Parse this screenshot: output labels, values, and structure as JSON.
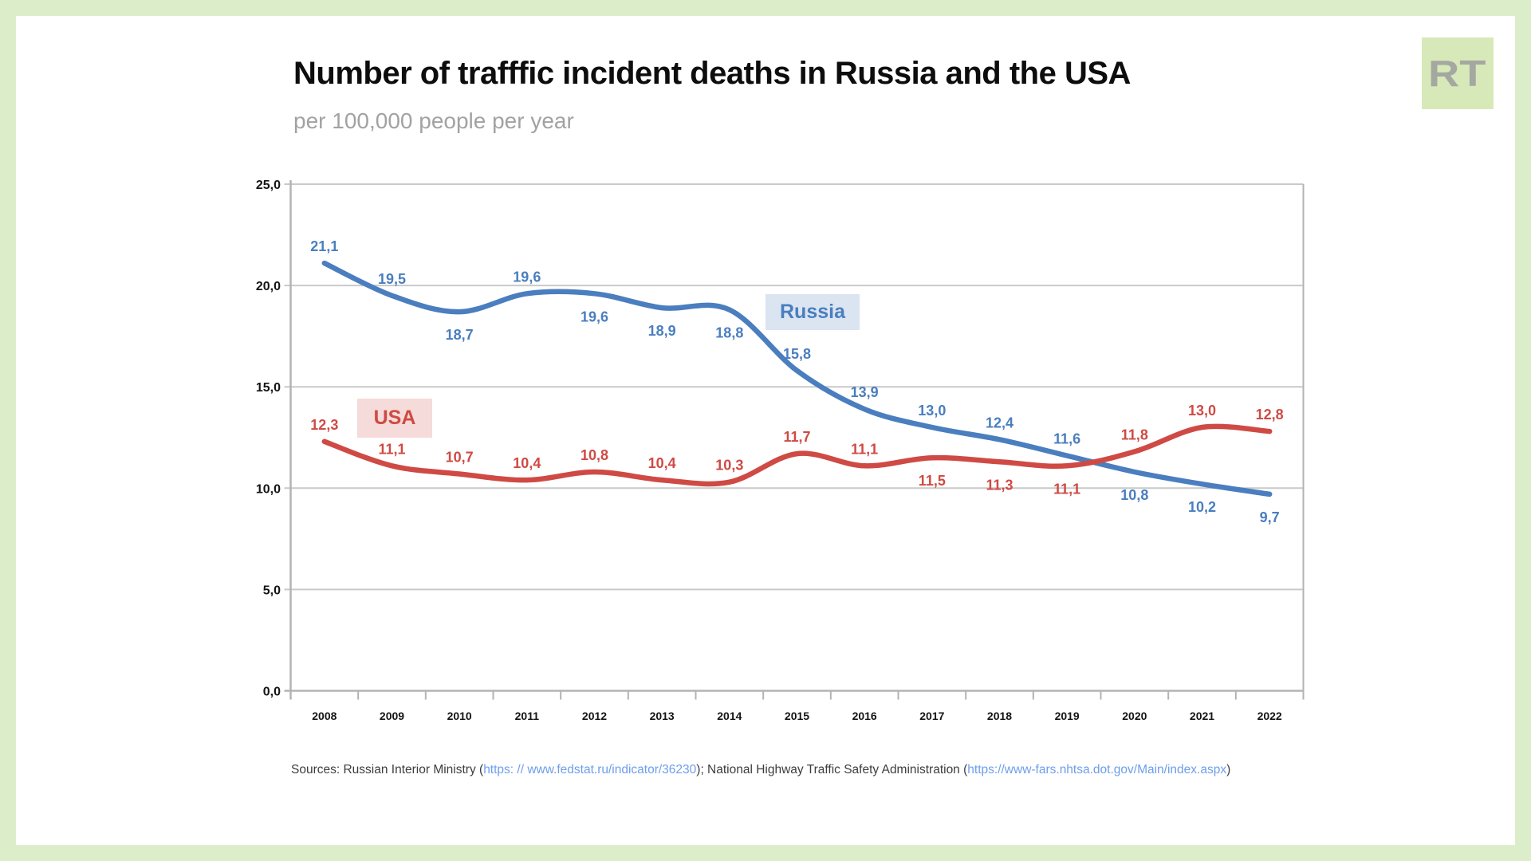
{
  "page": {
    "logo_text": "RT"
  },
  "chart_data": {
    "type": "line",
    "title": "Number of trafffic incident deaths in Russia and the USA",
    "subtitle": "per 100,000 people per year",
    "x_categories": [
      "2008",
      "2009",
      "2010",
      "2011",
      "2012",
      "2013",
      "2014",
      "2015",
      "2016",
      "2017",
      "2018",
      "2019",
      "2020",
      "2021",
      "2022"
    ],
    "series": [
      {
        "name": "Russia",
        "color": "#4a7ebf",
        "legend_bg": "#dbe5f1",
        "values": [
          21.1,
          19.5,
          18.7,
          19.6,
          19.6,
          18.9,
          18.8,
          15.8,
          13.9,
          13.0,
          12.4,
          11.6,
          10.8,
          10.2,
          9.7
        ],
        "labels": [
          "21,1",
          "19,5",
          "18,7",
          "19,6",
          "19,6",
          "18,9",
          "18,8",
          "15,8",
          "13,9",
          "13,0",
          "12,4",
          "11,6",
          "10,8",
          "10,2",
          "9,7"
        ],
        "label_sides": [
          "above",
          "above",
          "below",
          "above",
          "below",
          "below",
          "below",
          "above",
          "above",
          "above",
          "above",
          "above",
          "below",
          "below",
          "below"
        ]
      },
      {
        "name": "USA",
        "color": "#cf4a44",
        "legend_bg": "#f5dbd9",
        "values": [
          12.3,
          11.1,
          10.7,
          10.4,
          10.8,
          10.4,
          10.3,
          11.7,
          11.1,
          11.5,
          11.3,
          11.1,
          11.8,
          13.0,
          12.8
        ],
        "labels": [
          "12,3",
          "11,1",
          "10,7",
          "10,4",
          "10,8",
          "10,4",
          "10,3",
          "11,7",
          "11,1",
          "11,5",
          "11,3",
          "11,1",
          "11,8",
          "13,0",
          "12,8"
        ],
        "label_sides": [
          "above",
          "above",
          "above",
          "above",
          "above",
          "above",
          "above",
          "above",
          "above",
          "below",
          "below",
          "below",
          "above",
          "above",
          "above"
        ]
      }
    ],
    "ylim": [
      0,
      25
    ],
    "ytick_step": 5,
    "ytick_labels": [
      "0,0",
      "5,0",
      "10,0",
      "15,0",
      "20,0",
      "25,0"
    ],
    "grid": true,
    "legend_position": "inside-plot",
    "grid_color": "#c9c9c9",
    "axis_color": "#b3b3b3"
  },
  "sources": {
    "prefix": "Sources: Russian Interior Ministry (",
    "link1": "https: // www.fedstat.ru/indicator/36230",
    "mid": "); National Highway Traffic Safety Administration (",
    "link2": "https://www-fars.nhtsa.dot.gov/Main/index.aspx",
    "suffix": ")"
  }
}
